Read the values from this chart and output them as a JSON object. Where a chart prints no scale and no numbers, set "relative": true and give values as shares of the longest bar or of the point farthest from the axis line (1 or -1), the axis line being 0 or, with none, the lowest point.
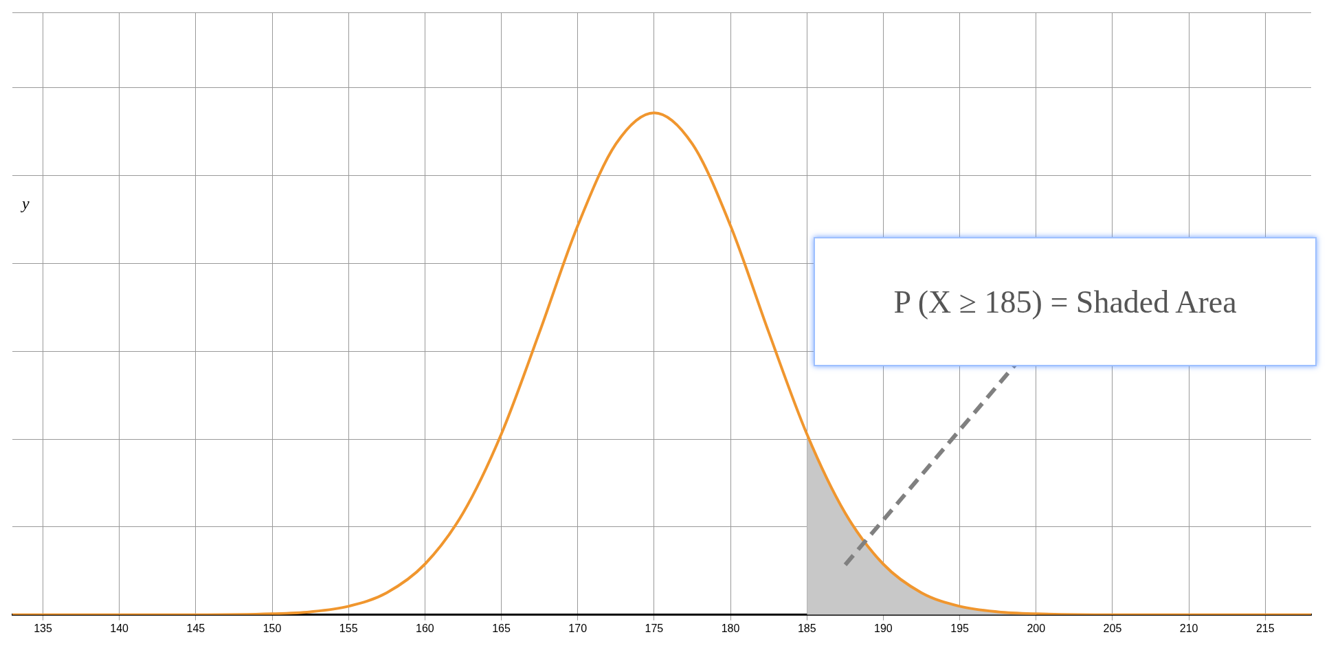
{
  "chart_data": {
    "type": "line",
    "relative": true,
    "ylabel": "y",
    "xlim": [
      133,
      218
    ],
    "xticks": [
      135,
      140,
      145,
      150,
      155,
      160,
      165,
      170,
      175,
      180,
      185,
      190,
      195,
      200,
      205,
      210,
      215
    ],
    "grid": true,
    "legend": false,
    "marker": "none",
    "annotations": [
      "P (X ≥ 185) = Shaded Area"
    ],
    "series": [
      {
        "color": "#f0962e",
        "x": [
          133,
          140,
          145,
          150,
          152.5,
          155,
          157.5,
          160,
          162.5,
          165,
          167.5,
          170,
          172.5,
          175,
          177.5,
          180,
          182.5,
          185,
          187.5,
          190,
          192.5,
          195,
          197.5,
          200,
          205,
          210,
          218
        ],
        "values": [
          0,
          0,
          0,
          0.002,
          0.006,
          0.017,
          0.044,
          0.101,
          0.203,
          0.36,
          0.563,
          0.775,
          0.938,
          1,
          0.938,
          0.775,
          0.563,
          0.36,
          0.203,
          0.101,
          0.044,
          0.017,
          0.006,
          0.002,
          0,
          0,
          0
        ]
      },
      {
        "type": "area",
        "color": "#c8c8c8",
        "x": [
          185,
          187.5,
          190,
          192.5,
          195,
          197.5,
          200
        ],
        "values": [
          0.36,
          0.203,
          0.101,
          0.044,
          0.017,
          0.006,
          0.002
        ]
      }
    ]
  }
}
